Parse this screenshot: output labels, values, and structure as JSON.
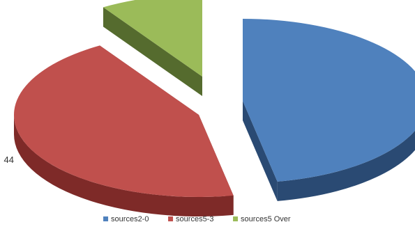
{
  "chart_data": {
    "type": "pie",
    "title": "",
    "style": "3d-exploded",
    "series": [
      {
        "name": "sources2-0",
        "value": 47,
        "color": "#4F81BD",
        "dark": "#2A4A73"
      },
      {
        "name": "sources5-3",
        "value": 44,
        "color": "#C0504D",
        "dark": "#7E2A28"
      },
      {
        "name": "sources5 Over",
        "value": 9,
        "color": "#9BBB59",
        "dark": "#556B2E"
      }
    ],
    "legend": {
      "placement": "bottom"
    }
  }
}
